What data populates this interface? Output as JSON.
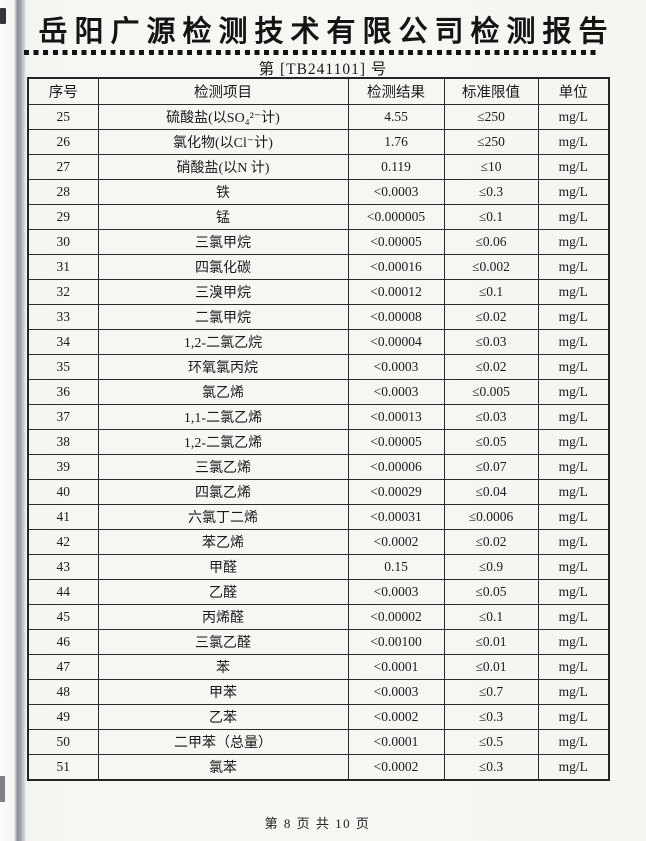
{
  "report": {
    "title": "岳阳广源检测技术有限公司检测报告",
    "report_no": "第 [TB241101] 号",
    "page_footer": "第 8 页  共 10 页"
  },
  "table": {
    "headers": [
      "序号",
      "检测项目",
      "检测结果",
      "标准限值",
      "单位"
    ],
    "rows": [
      {
        "no": "25",
        "item": "硫酸盐(以SO₄²⁻计)",
        "result": "4.55",
        "limit": "≤250",
        "unit": "mg/L"
      },
      {
        "no": "26",
        "item": "氯化物(以Cl⁻计)",
        "result": "1.76",
        "limit": "≤250",
        "unit": "mg/L"
      },
      {
        "no": "27",
        "item": "硝酸盐(以N 计)",
        "result": "0.119",
        "limit": "≤10",
        "unit": "mg/L"
      },
      {
        "no": "28",
        "item": "铁",
        "result": "<0.0003",
        "limit": "≤0.3",
        "unit": "mg/L"
      },
      {
        "no": "29",
        "item": "锰",
        "result": "<0.000005",
        "limit": "≤0.1",
        "unit": "mg/L"
      },
      {
        "no": "30",
        "item": "三氯甲烷",
        "result": "<0.00005",
        "limit": "≤0.06",
        "unit": "mg/L"
      },
      {
        "no": "31",
        "item": "四氯化碳",
        "result": "<0.00016",
        "limit": "≤0.002",
        "unit": "mg/L"
      },
      {
        "no": "32",
        "item": "三溴甲烷",
        "result": "<0.00012",
        "limit": "≤0.1",
        "unit": "mg/L"
      },
      {
        "no": "33",
        "item": "二氯甲烷",
        "result": "<0.00008",
        "limit": "≤0.02",
        "unit": "mg/L"
      },
      {
        "no": "34",
        "item": "1,2-二氯乙烷",
        "result": "<0.00004",
        "limit": "≤0.03",
        "unit": "mg/L"
      },
      {
        "no": "35",
        "item": "环氧氯丙烷",
        "result": "<0.0003",
        "limit": "≤0.02",
        "unit": "mg/L"
      },
      {
        "no": "36",
        "item": "氯乙烯",
        "result": "<0.0003",
        "limit": "≤0.005",
        "unit": "mg/L"
      },
      {
        "no": "37",
        "item": "1,1-二氯乙烯",
        "result": "<0.00013",
        "limit": "≤0.03",
        "unit": "mg/L"
      },
      {
        "no": "38",
        "item": "1,2-二氯乙烯",
        "result": "<0.00005",
        "limit": "≤0.05",
        "unit": "mg/L"
      },
      {
        "no": "39",
        "item": "三氯乙烯",
        "result": "<0.00006",
        "limit": "≤0.07",
        "unit": "mg/L"
      },
      {
        "no": "40",
        "item": "四氯乙烯",
        "result": "<0.00029",
        "limit": "≤0.04",
        "unit": "mg/L"
      },
      {
        "no": "41",
        "item": "六氯丁二烯",
        "result": "<0.00031",
        "limit": "≤0.0006",
        "unit": "mg/L"
      },
      {
        "no": "42",
        "item": "苯乙烯",
        "result": "<0.0002",
        "limit": "≤0.02",
        "unit": "mg/L"
      },
      {
        "no": "43",
        "item": "甲醛",
        "result": "0.15",
        "limit": "≤0.9",
        "unit": "mg/L"
      },
      {
        "no": "44",
        "item": "乙醛",
        "result": "<0.0003",
        "limit": "≤0.05",
        "unit": "mg/L"
      },
      {
        "no": "45",
        "item": "丙烯醛",
        "result": "<0.00002",
        "limit": "≤0.1",
        "unit": "mg/L"
      },
      {
        "no": "46",
        "item": "三氯乙醛",
        "result": "<0.00100",
        "limit": "≤0.01",
        "unit": "mg/L"
      },
      {
        "no": "47",
        "item": "苯",
        "result": "<0.0001",
        "limit": "≤0.01",
        "unit": "mg/L"
      },
      {
        "no": "48",
        "item": "甲苯",
        "result": "<0.0003",
        "limit": "≤0.7",
        "unit": "mg/L"
      },
      {
        "no": "49",
        "item": "乙苯",
        "result": "<0.0002",
        "limit": "≤0.3",
        "unit": "mg/L"
      },
      {
        "no": "50",
        "item": "二甲苯（总量）",
        "result": "<0.0001",
        "limit": "≤0.5",
        "unit": "mg/L"
      },
      {
        "no": "51",
        "item": "氯苯",
        "result": "<0.0002",
        "limit": "≤0.3",
        "unit": "mg/L"
      }
    ]
  }
}
